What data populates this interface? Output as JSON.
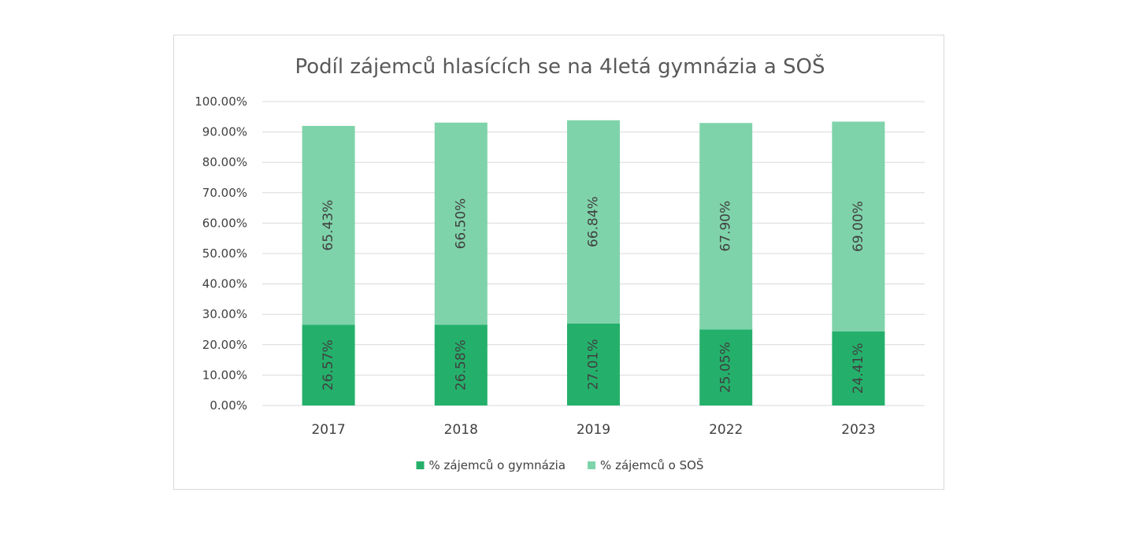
{
  "chart_data": {
    "type": "bar",
    "stacked": true,
    "title": "Podíl zájemců hlasících se na 4letá gymnázia a SOŠ",
    "categories": [
      "2017",
      "2018",
      "2019",
      "2022",
      "2023"
    ],
    "series": [
      {
        "name": "% zájemců o gymnázia",
        "values": [
          26.57,
          26.58,
          27.01,
          25.05,
          24.41
        ],
        "labels": [
          "26.57%",
          "26.58%",
          "27.01%",
          "25.05%",
          "24.41%"
        ],
        "color": "#24b06b"
      },
      {
        "name": "% zájemců o SOŠ",
        "values": [
          65.43,
          66.5,
          66.84,
          67.9,
          69.0
        ],
        "labels": [
          "65.43%",
          "66.50%",
          "66.84%",
          "67.90%",
          "69.00%"
        ],
        "color": "#7fd3aa"
      }
    ],
    "ylim": [
      0,
      100
    ],
    "yticks": [
      0,
      10,
      20,
      30,
      40,
      50,
      60,
      70,
      80,
      90,
      100
    ],
    "ytick_labels": [
      "0.00%",
      "10.00%",
      "20.00%",
      "30.00%",
      "40.00%",
      "50.00%",
      "60.00%",
      "70.00%",
      "80.00%",
      "90.00%",
      "100.00%"
    ],
    "grid": true,
    "legend_position": "bottom",
    "data_label_orientation": "vertical"
  }
}
